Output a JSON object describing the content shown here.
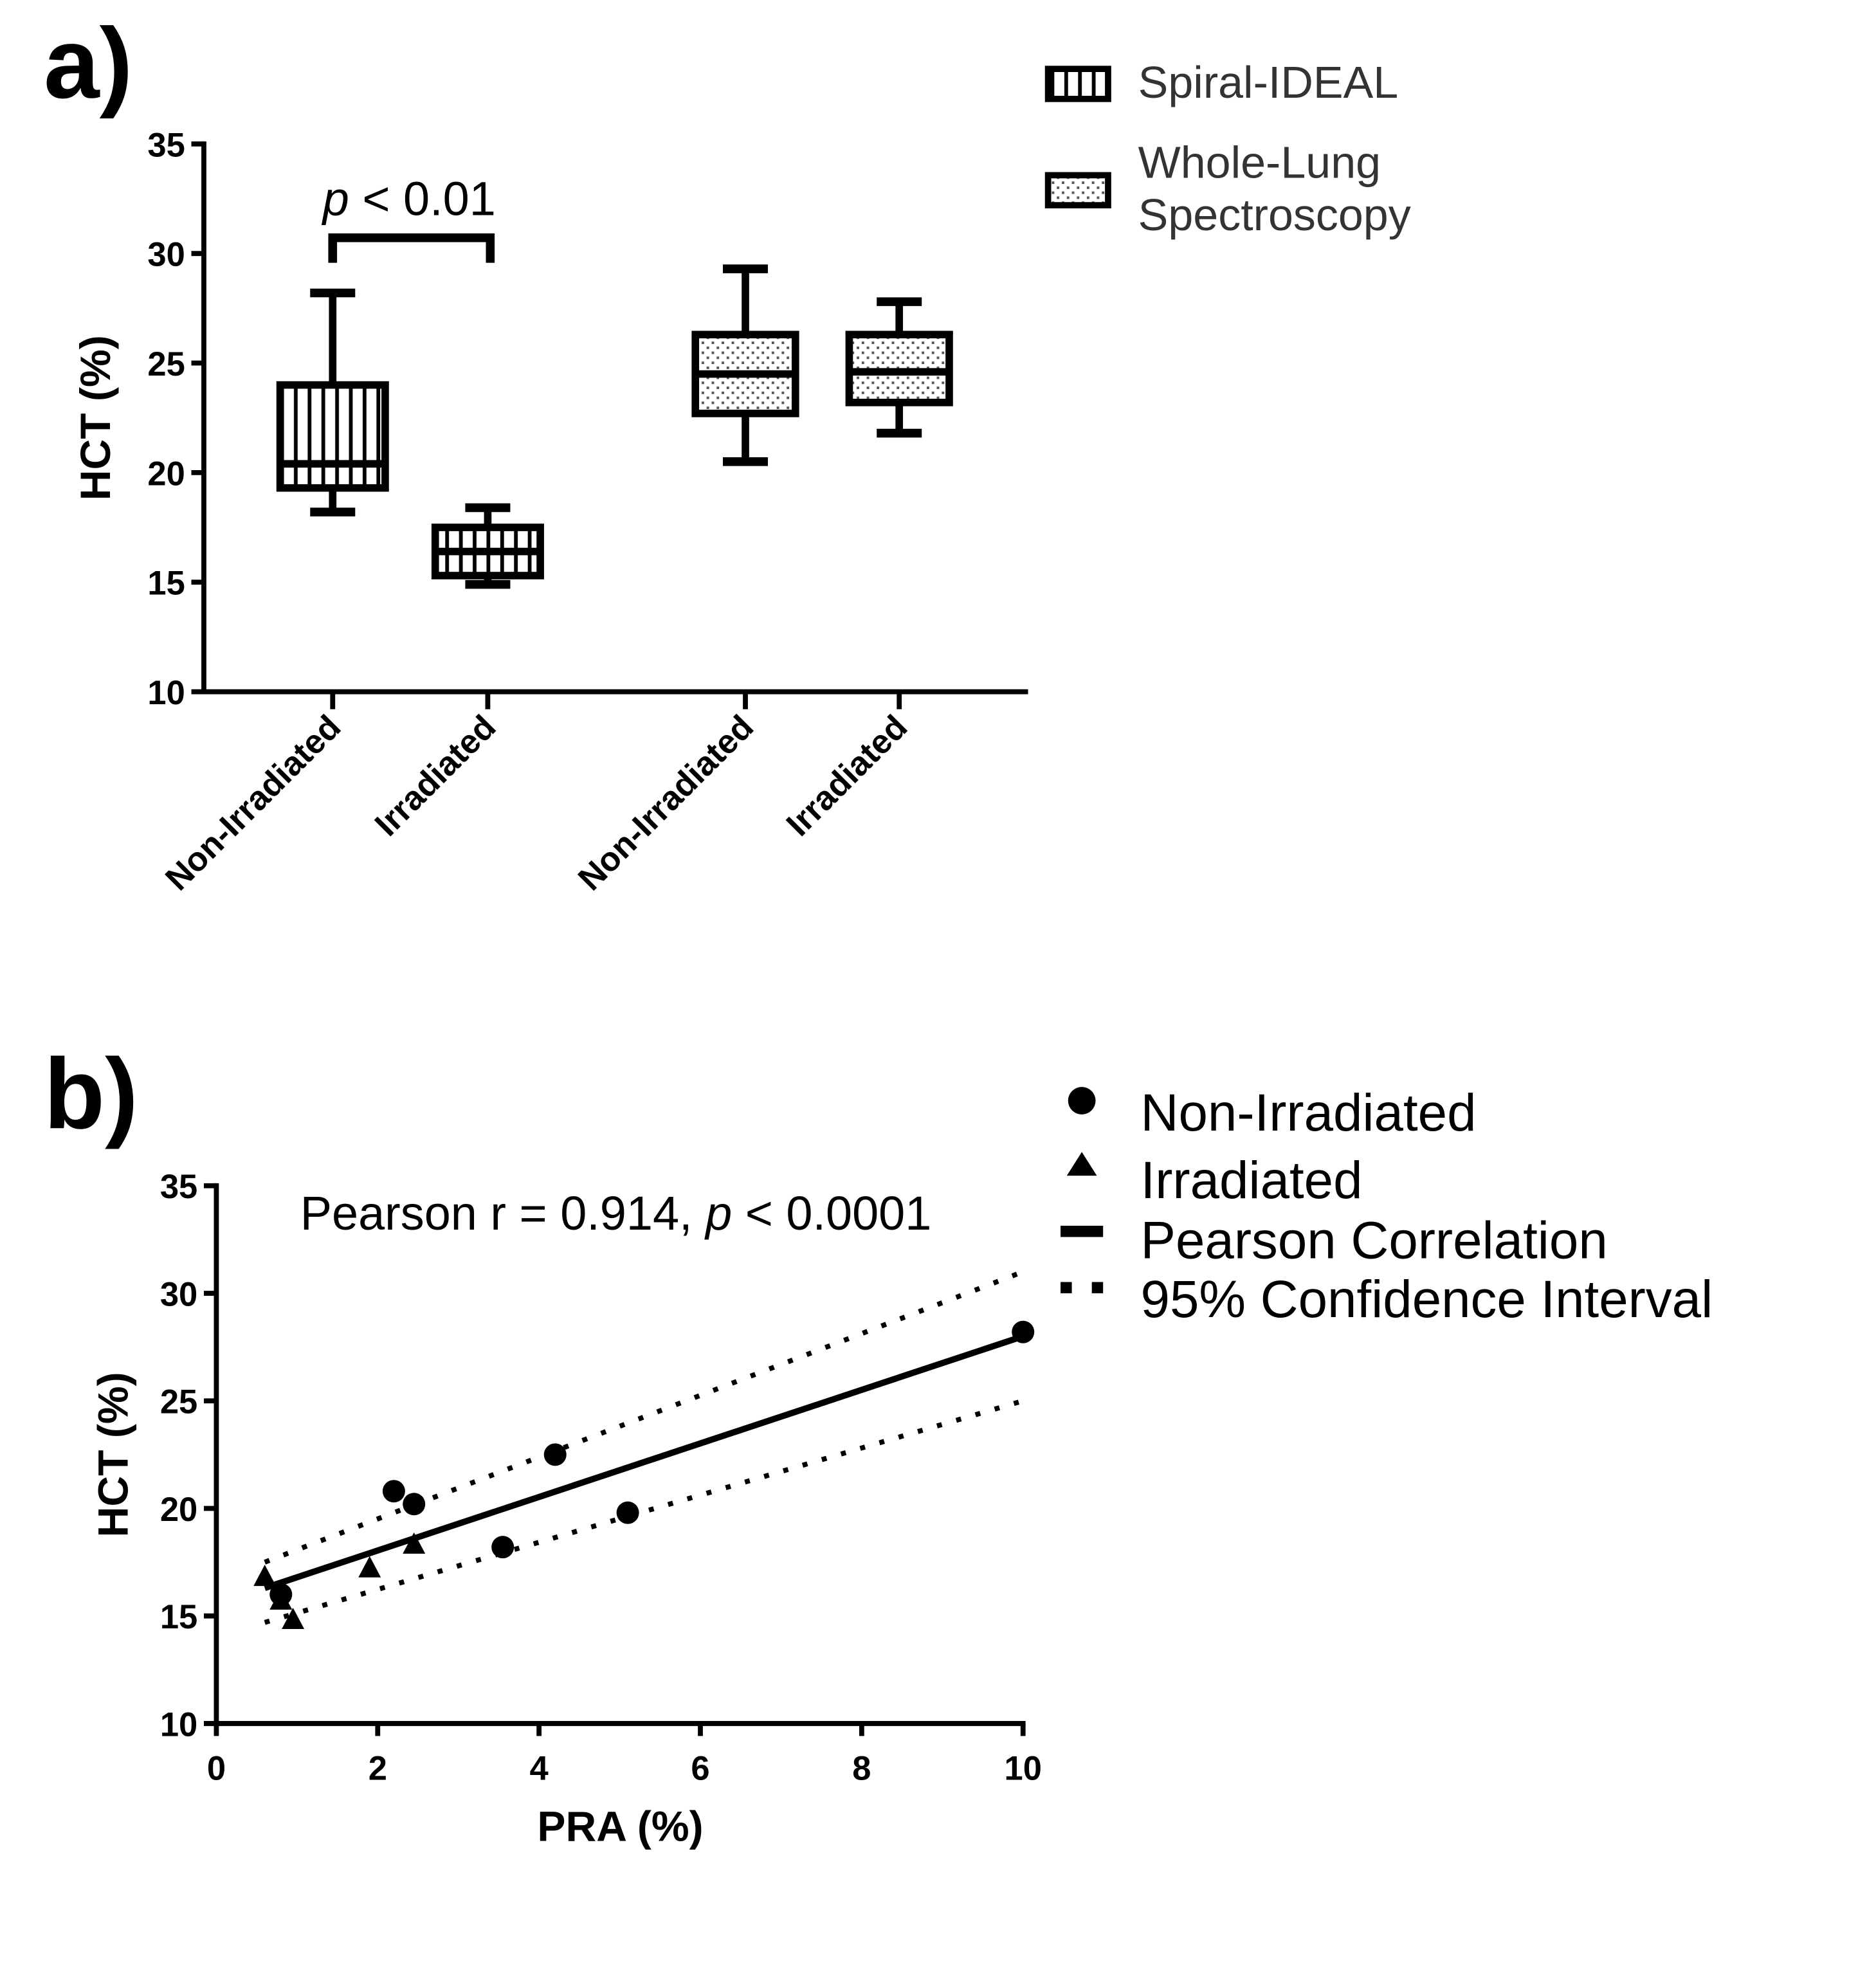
{
  "colors": {
    "ink": "#000000",
    "background": "#ffffff"
  },
  "chart_data": [
    {
      "type": "box",
      "panel_label": "a)",
      "ylabel": "HCT (%)",
      "ylim": [
        10,
        35
      ],
      "yticks": [
        10,
        15,
        20,
        25,
        30,
        35
      ],
      "categories": [
        "Non-Irradiated",
        "Irradiated",
        "Non-Irradiated",
        "Irradiated"
      ],
      "legend": [
        "Spiral-IDEAL",
        "Whole-Lung Spectroscopy"
      ],
      "legend_lines": [
        "Spiral-IDEAL",
        "Whole-Lung",
        "Spectroscopy"
      ],
      "boxes": [
        {
          "group": "Spiral-IDEAL",
          "category": "Non-Irradiated",
          "min": 18.2,
          "q1": 19.3,
          "median": 20.4,
          "q3": 24.0,
          "max": 28.2
        },
        {
          "group": "Spiral-IDEAL",
          "category": "Irradiated",
          "min": 14.9,
          "q1": 15.3,
          "median": 16.4,
          "q3": 17.5,
          "max": 18.4
        },
        {
          "group": "Whole-Lung Spectroscopy",
          "category": "Non-Irradiated",
          "min": 20.5,
          "q1": 22.7,
          "median": 24.5,
          "q3": 26.3,
          "max": 29.3
        },
        {
          "group": "Whole-Lung Spectroscopy",
          "category": "Irradiated",
          "min": 21.8,
          "q1": 23.2,
          "median": 24.6,
          "q3": 26.3,
          "max": 27.8
        }
      ],
      "annotation": {
        "p_italic": "p",
        "text": " < 0.01"
      }
    },
    {
      "type": "scatter",
      "panel_label": "b)",
      "xlabel": "PRA (%)",
      "ylabel": "HCT (%)",
      "xlim": [
        0,
        10
      ],
      "ylim": [
        10,
        35
      ],
      "xticks": [
        0,
        2,
        4,
        6,
        8,
        10
      ],
      "yticks": [
        10,
        15,
        20,
        25,
        30,
        35
      ],
      "annotation": {
        "prefix": "Pearson r = 0.914, ",
        "p_italic": "p",
        "suffix": " < 0.0001"
      },
      "legend": [
        "Non-Irradiated",
        "Irradiated",
        "Pearson Correlation",
        "95% Confidence Interval"
      ],
      "series": [
        {
          "name": "Non-Irradiated",
          "marker": "circle",
          "points": [
            [
              0.8,
              16.0
            ],
            [
              2.2,
              20.8
            ],
            [
              2.45,
              20.2
            ],
            [
              3.55,
              18.2
            ],
            [
              4.2,
              22.5
            ],
            [
              5.1,
              19.8
            ],
            [
              10.0,
              28.2
            ]
          ]
        },
        {
          "name": "Irradiated",
          "marker": "triangle",
          "points": [
            [
              0.6,
              16.8
            ],
            [
              0.8,
              15.7
            ],
            [
              0.95,
              14.8
            ],
            [
              1.9,
              17.2
            ],
            [
              2.45,
              18.3
            ]
          ]
        }
      ],
      "fit_line": [
        [
          0.6,
          16.3
        ],
        [
          10.0,
          28.0
        ]
      ],
      "ci_upper": [
        [
          0.6,
          17.5
        ],
        [
          10.0,
          31.0
        ]
      ],
      "ci_lower": [
        [
          0.6,
          14.7
        ],
        [
          10.0,
          25.0
        ]
      ]
    }
  ]
}
